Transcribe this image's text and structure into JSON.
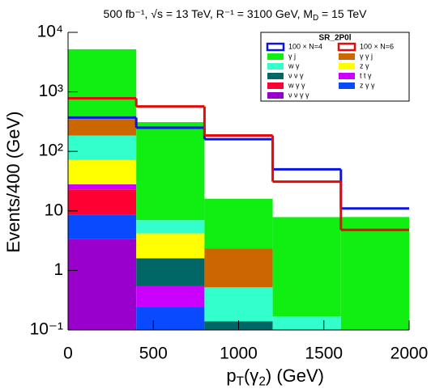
{
  "chart_data": {
    "type": "stacked_histogram",
    "title_parts": [
      "500 fb⁻¹, √s = 13 TeV, R⁻¹ = 3100 GeV, M",
      "D",
      " = 15 TeV"
    ],
    "ylabel": "Events/400 (GeV)",
    "xlabel_parts": [
      "p",
      "T",
      "(γ",
      "2",
      ") (GeV)"
    ],
    "log_y": true,
    "bins": [
      0,
      400,
      800,
      1200,
      1600,
      2000
    ],
    "xlim": [
      0,
      2000
    ],
    "xticks": [
      0,
      500,
      1000,
      1500,
      2000
    ],
    "ylim": [
      0.1,
      10000
    ],
    "yticks": [
      {
        "value": 10000,
        "label": "10⁴"
      },
      {
        "value": 1000,
        "label": "10³"
      },
      {
        "value": 100,
        "label": "10²"
      },
      10,
      1,
      {
        "value": 0.1,
        "label": "10⁻¹"
      }
    ],
    "legend_title": "SR_2P0l",
    "legend_position": "upper right",
    "lines": [
      {
        "name": "100 × N=4",
        "color": "#0a14e6",
        "values": [
          370,
          250,
          160,
          50,
          11
        ]
      },
      {
        "name": "100 × N=6",
        "color": "#e60a0a",
        "values": [
          780,
          570,
          185,
          31,
          4.8
        ]
      }
    ],
    "series": [
      {
        "name": "ν ν γ γ",
        "color": "#9900cc",
        "values": [
          3.4,
          0,
          0,
          0,
          0
        ]
      },
      {
        "name": "z γ γ",
        "color": "#0a4aff",
        "values": [
          5.3,
          0.24,
          0,
          0,
          0
        ]
      },
      {
        "name": "w γ γ",
        "color": "#ff0033",
        "values": [
          14.3,
          0,
          0,
          0,
          0
        ]
      },
      {
        "name": "t t γ",
        "color": "#cc00ff",
        "values": [
          5,
          0.31,
          0,
          0,
          0
        ]
      },
      {
        "name": "ν ν γ",
        "color": "#006666",
        "values": [
          0,
          1.05,
          0.14,
          0,
          0
        ]
      },
      {
        "name": "z γ",
        "color": "#ffff00",
        "values": [
          44,
          2.6,
          0,
          0,
          0
        ]
      },
      {
        "name": "w γ",
        "color": "#33ffcc",
        "values": [
          113,
          2.8,
          0.38,
          0.17,
          0
        ]
      },
      {
        "name": "γ γ j",
        "color": "#cc6600",
        "values": [
          165,
          0,
          1.8,
          0,
          0
        ]
      },
      {
        "name": "γ j",
        "color": "#11ee11",
        "values": [
          4850,
          303,
          13.7,
          7.7,
          7.9
        ]
      }
    ]
  }
}
